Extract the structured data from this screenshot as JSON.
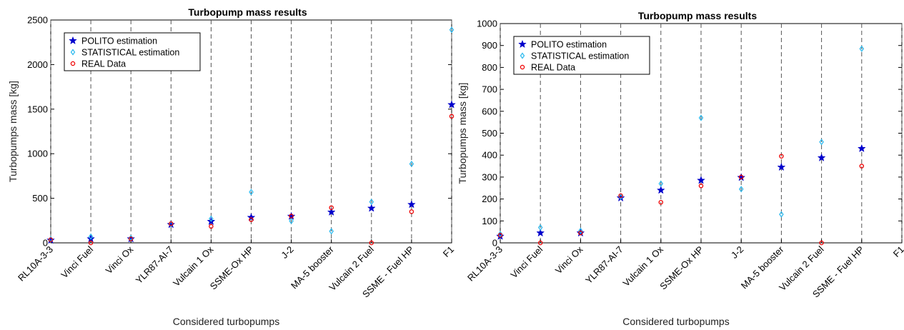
{
  "colors": {
    "polito": "#0000cc",
    "statistical": "#33bbee",
    "real": "#ee0000",
    "grid": "#555555"
  },
  "chart_data": [
    {
      "type": "scatter",
      "title": "Turbopump mass results",
      "xlabel": "Considered turbopumps",
      "ylabel": "Turbopumps mass [kg]",
      "categories": [
        "RL10A-3-3",
        "Vinci Fuel",
        "Vinci Ox",
        "YLR87-AI-7",
        "Vulcain 1 Ox",
        "SSME-Ox HP",
        "J-2",
        "MA-5 booster",
        "Vulcain 2 Fuel",
        "SSME - Fuel HP",
        "F1"
      ],
      "ylim": [
        0,
        2500
      ],
      "yticks": [
        0,
        500,
        1000,
        1500,
        2000,
        2500
      ],
      "grid": "vertical dashed",
      "legend_position": "top-left",
      "series": [
        {
          "name": "POLITO estimation",
          "marker": "star",
          "values": [
            30,
            45,
            45,
            205,
            240,
            285,
            298,
            345,
            388,
            430,
            1550
          ]
        },
        {
          "name": "STATISTICAL estimation",
          "marker": "diamond",
          "values": [
            40,
            70,
            55,
            210,
            270,
            570,
            245,
            130,
            460,
            885,
            2390
          ]
        },
        {
          "name": "REAL Data",
          "marker": "circle",
          "values": [
            35,
            0,
            45,
            215,
            185,
            260,
            300,
            395,
            0,
            350,
            1420
          ]
        }
      ]
    },
    {
      "type": "scatter",
      "title": "Turbopump mass results",
      "xlabel": "Considered turbopumps",
      "ylabel": "Turbopumps mass [kg]",
      "categories": [
        "RL10A-3-3",
        "Vinci Fuel",
        "Vinci Ox",
        "YLR87-AI-7",
        "Vulcain 1 Ox",
        "SSME-Ox HP",
        "J-2",
        "MA-5 booster",
        "Vulcain 2 Fuel",
        "SSME - Fuel HP",
        "F1"
      ],
      "ylim": [
        0,
        1000
      ],
      "yticks": [
        0,
        100,
        200,
        300,
        400,
        500,
        600,
        700,
        800,
        900,
        1000
      ],
      "grid": "vertical dashed",
      "legend_position": "top-left",
      "series": [
        {
          "name": "POLITO estimation",
          "marker": "star",
          "values": [
            30,
            45,
            45,
            205,
            240,
            285,
            298,
            345,
            388,
            430,
            null
          ]
        },
        {
          "name": "STATISTICAL estimation",
          "marker": "diamond",
          "values": [
            40,
            70,
            55,
            210,
            270,
            570,
            245,
            130,
            460,
            885,
            null
          ]
        },
        {
          "name": "REAL Data",
          "marker": "circle",
          "values": [
            35,
            0,
            45,
            215,
            185,
            260,
            300,
            395,
            0,
            350,
            null
          ]
        }
      ]
    }
  ]
}
